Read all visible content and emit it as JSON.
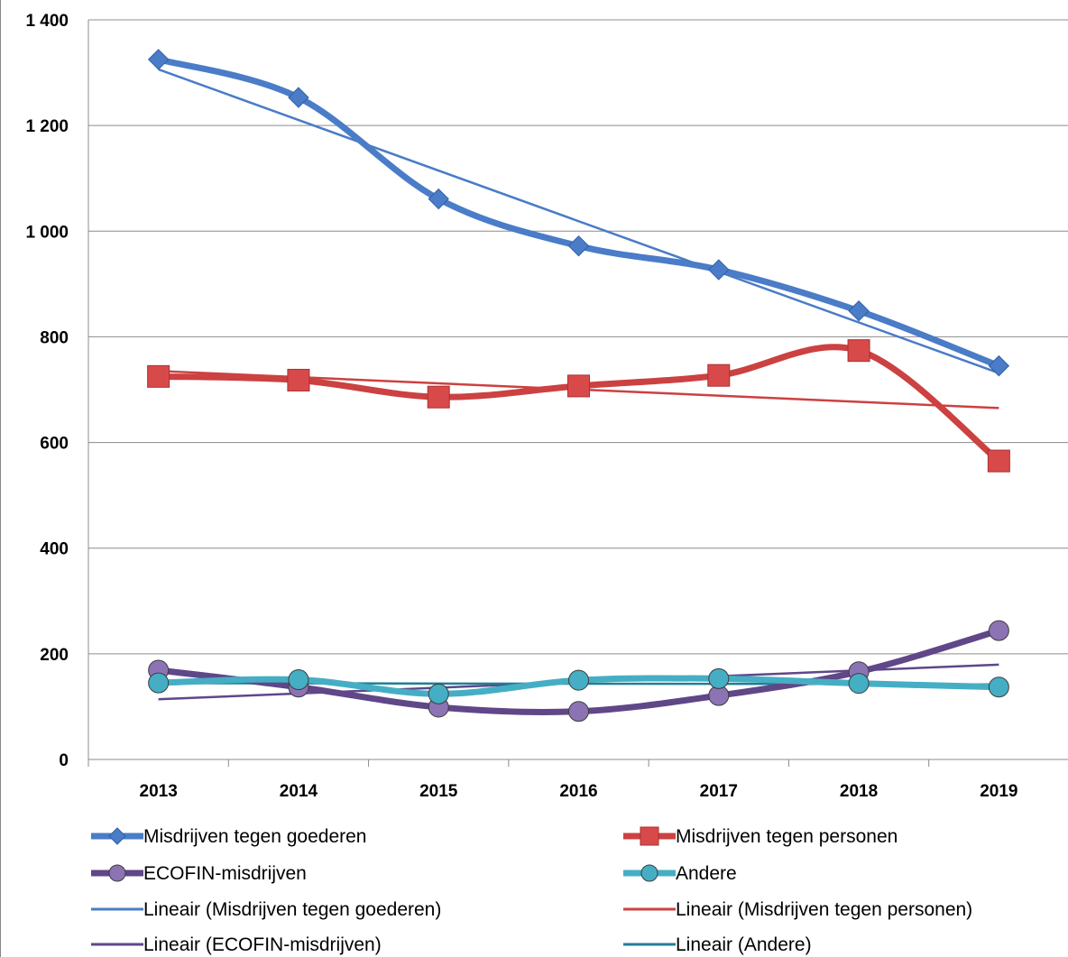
{
  "chart_data": {
    "type": "line",
    "categories": [
      "2013",
      "2014",
      "2015",
      "2016",
      "2017",
      "2018",
      "2019"
    ],
    "ylim": [
      0,
      1400
    ],
    "y_ticks": [
      "0",
      "200",
      "400",
      "600",
      "800",
      "1 000",
      "1 200",
      "1 400"
    ],
    "grid": true,
    "legend_position": "bottom",
    "series": [
      {
        "name": "Misdrijven tegen goederen",
        "values": [
          1325,
          1253,
          1061,
          972,
          927,
          849,
          745
        ],
        "color": "#4a7cc7",
        "marker": "diamond"
      },
      {
        "name": "Misdrijven tegen personen",
        "values": [
          725,
          718,
          686,
          707,
          727,
          774,
          565
        ],
        "color": "#cc4141",
        "marker": "square"
      },
      {
        "name": "ECOFIN-misdrijven",
        "values": [
          169,
          137,
          99,
          91,
          121,
          166,
          244
        ],
        "color": "#5f4788",
        "marker": "circle"
      },
      {
        "name": "Andere",
        "values": [
          145,
          151,
          124,
          150,
          153,
          144,
          137
        ],
        "color": "#45aec4",
        "marker": "circle"
      }
    ],
    "trendlines": [
      {
        "name": "Lineair (Misdrijven tegen goederen)",
        "color": "#4a7cc7"
      },
      {
        "name": "Lineair (Misdrijven tegen personen)",
        "color": "#cc4141"
      },
      {
        "name": "Lineair (ECOFIN-misdrijven)",
        "color": "#5f4788"
      },
      {
        "name": "Lineair (Andere)",
        "color": "#1f7f96"
      }
    ]
  }
}
